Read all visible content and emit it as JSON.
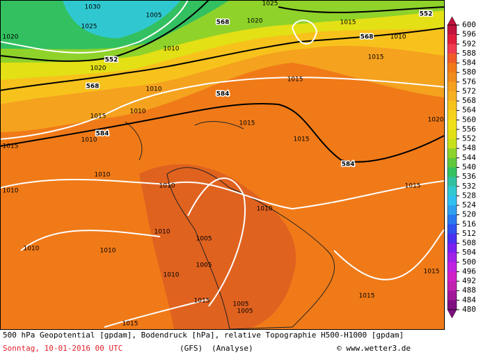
{
  "map": {
    "labels": [
      "1020",
      "1030",
      "1025",
      "1005",
      "552",
      "1020",
      "568",
      "568",
      "1020",
      "1025",
      "1015",
      "568",
      "1010",
      "552",
      "1015",
      "1010",
      "1010",
      "584",
      "1015",
      "1015",
      "1010",
      "584",
      "1010",
      "1015",
      "1015",
      "1015",
      "1020",
      "584",
      "1010",
      "1010",
      "1010",
      "1015",
      "1010",
      "1010",
      "1010",
      "1010",
      "1005",
      "1005",
      "1010",
      "1015",
      "1015",
      "1015",
      "1005",
      "1005",
      "1015"
    ]
  },
  "colorbar": {
    "levels": [
      600,
      596,
      592,
      588,
      584,
      580,
      576,
      572,
      568,
      564,
      560,
      556,
      552,
      548,
      544,
      540,
      536,
      532,
      528,
      524,
      520,
      516,
      512,
      508,
      504,
      500,
      496,
      492,
      488,
      484,
      480
    ]
  },
  "caption": {
    "line1": "500 hPa Geopotential [gpdam], Bodendruck [hPa], relative Topographie H500-H1000 [gpdam]",
    "date": "Sonntag, 10-01-2016  00 UTC",
    "model": "(GFS)",
    "analysis": "(Analyse)",
    "copyright": "© www.wetter3.de"
  }
}
